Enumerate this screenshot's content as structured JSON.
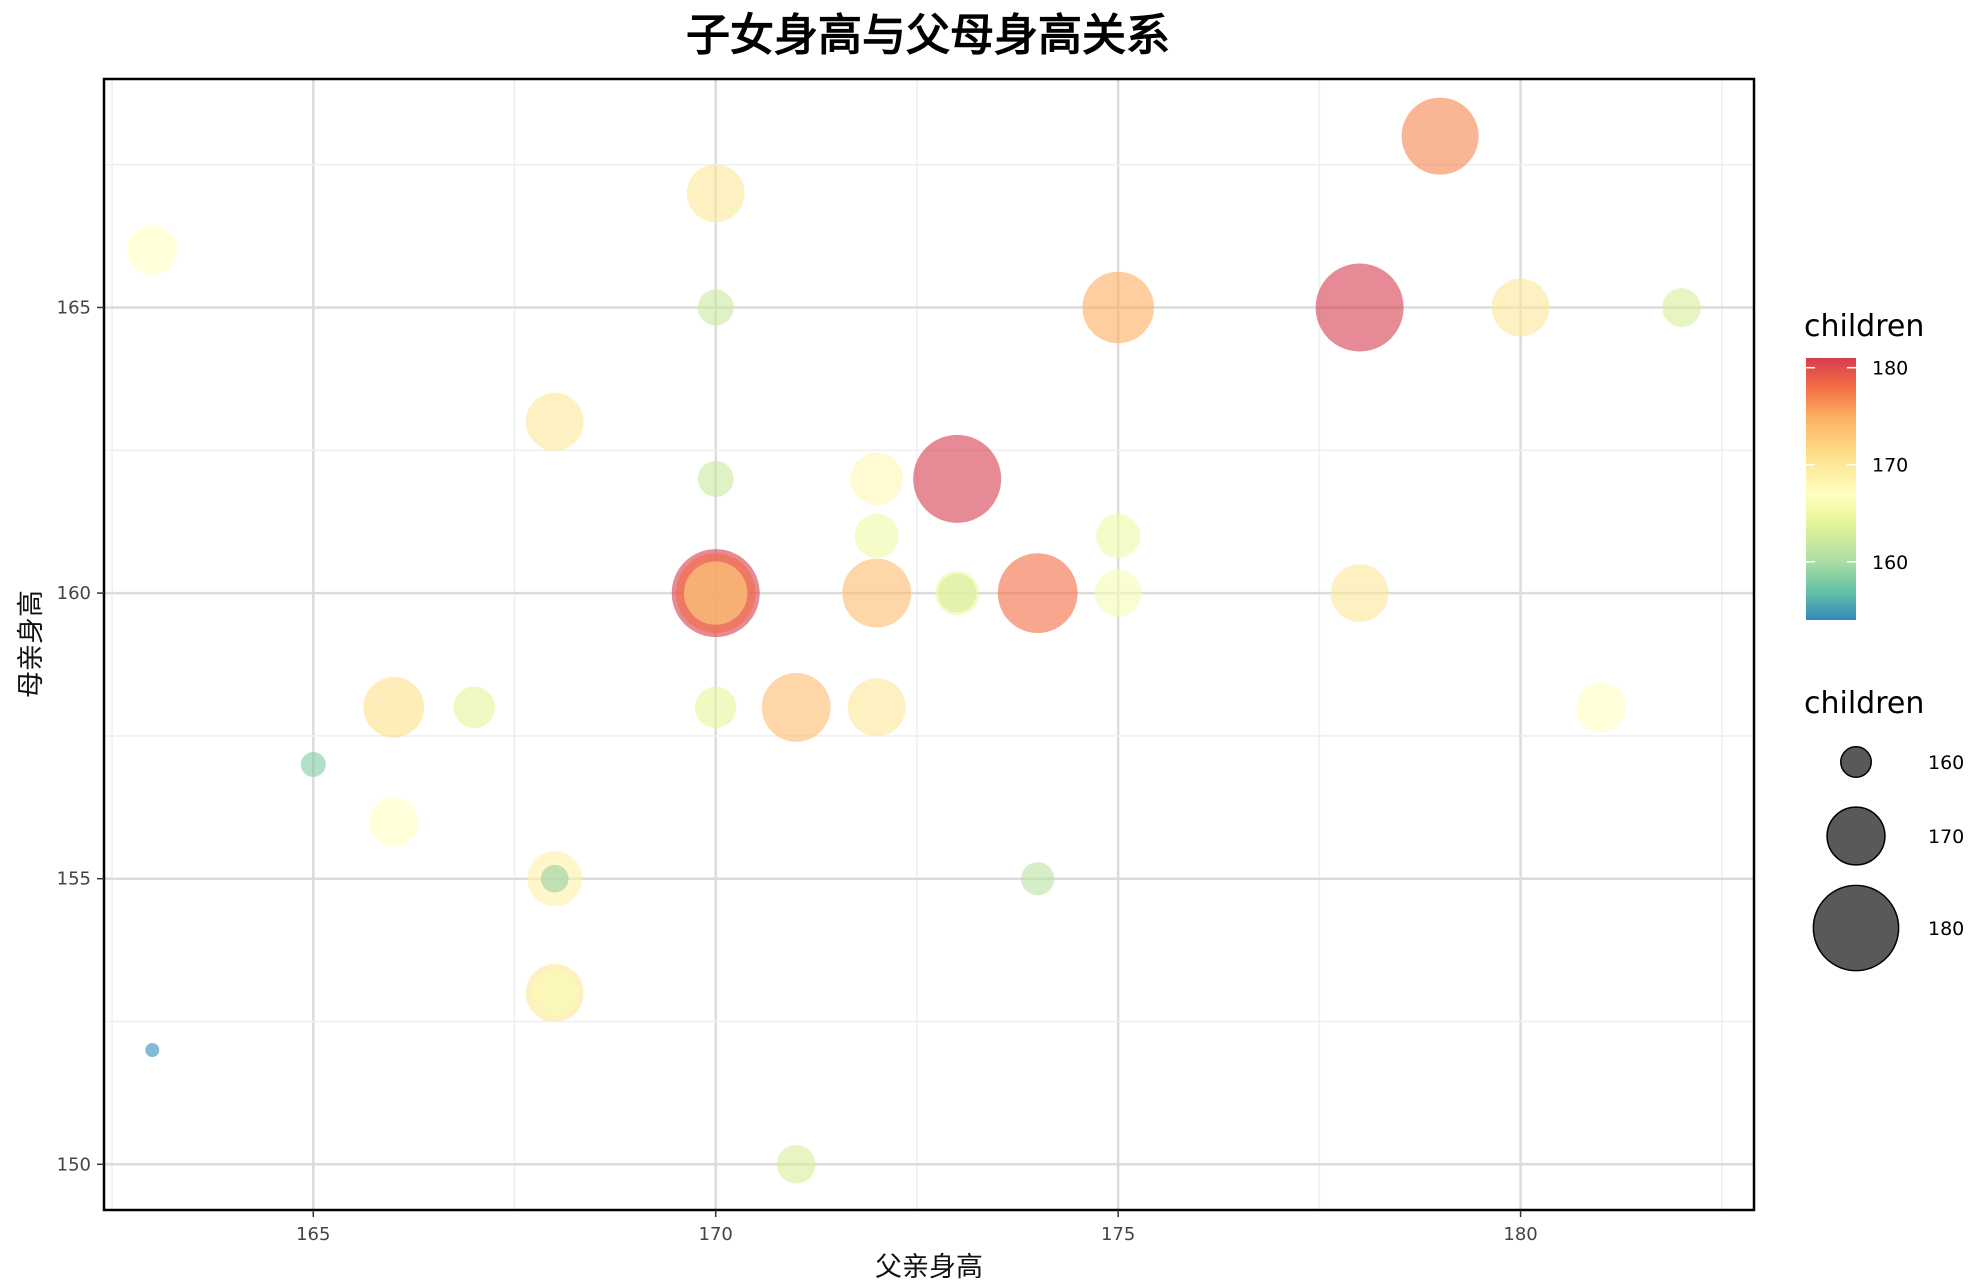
{
  "chart_data": {
    "type": "scatter",
    "title": "子女身高与父母身高关系",
    "xlabel": "父亲身高",
    "ylabel": "母亲身高",
    "xlim": [
      162.4,
      182.9
    ],
    "ylim": [
      149.2,
      169.0
    ],
    "x_ticks": [
      165,
      170,
      175,
      180
    ],
    "y_ticks": [
      150,
      155,
      160,
      165
    ],
    "grid": true,
    "point_opacity": 0.6,
    "color_scale": {
      "title": "children",
      "palette": "Spectral",
      "domain": [
        154,
        181
      ],
      "stops": [
        {
          "value": 154,
          "color": "#3288bd"
        },
        {
          "value": 157,
          "color": "#66c2a5"
        },
        {
          "value": 160,
          "color": "#abdda4"
        },
        {
          "value": 164,
          "color": "#e6f598"
        },
        {
          "value": 167,
          "color": "#ffffbf"
        },
        {
          "value": 171,
          "color": "#fee08b"
        },
        {
          "value": 175,
          "color": "#fdae61"
        },
        {
          "value": 178,
          "color": "#f46d43"
        },
        {
          "value": 181,
          "color": "#d53e4f"
        }
      ],
      "ticks": [
        160,
        170,
        180
      ],
      "tick_labels": [
        "160",
        "170",
        "180"
      ]
    },
    "size_scale": {
      "title": "children",
      "domain": [
        154,
        181
      ],
      "breaks": [
        160,
        170,
        180
      ],
      "break_labels": [
        "160",
        "170",
        "180"
      ],
      "legend_color": "#000000",
      "legend_opacity": 0.65
    },
    "legend_position": "right",
    "points": [
      {
        "father": 163,
        "mother": 166,
        "children": 167
      },
      {
        "father": 163,
        "mother": 152,
        "children": 154
      },
      {
        "father": 165,
        "mother": 157,
        "children": 158
      },
      {
        "father": 166,
        "mother": 158,
        "children": 171
      },
      {
        "father": 166,
        "mother": 156,
        "children": 167
      },
      {
        "father": 167,
        "mother": 158,
        "children": 164
      },
      {
        "father": 168,
        "mother": 163,
        "children": 170
      },
      {
        "father": 168,
        "mother": 155,
        "children": 169
      },
      {
        "father": 168,
        "mother": 155,
        "children": 159
      },
      {
        "father": 168,
        "mother": 153,
        "children": 170
      },
      {
        "father": 168,
        "mother": 153,
        "children": 166
      },
      {
        "father": 170,
        "mother": 167,
        "children": 170
      },
      {
        "father": 170,
        "mother": 165,
        "children": 162
      },
      {
        "father": 170,
        "mother": 162,
        "children": 162
      },
      {
        "father": 170,
        "mother": 160,
        "children": 181
      },
      {
        "father": 170,
        "mother": 160,
        "children": 178
      },
      {
        "father": 170,
        "mother": 160,
        "children": 172
      },
      {
        "father": 170,
        "mother": 158,
        "children": 164
      },
      {
        "father": 171,
        "mother": 158,
        "children": 174
      },
      {
        "father": 171,
        "mother": 150,
        "children": 163
      },
      {
        "father": 172,
        "mother": 162,
        "children": 168
      },
      {
        "father": 172,
        "mother": 161,
        "children": 165
      },
      {
        "father": 172,
        "mother": 160,
        "children": 174
      },
      {
        "father": 172,
        "mother": 158,
        "children": 170
      },
      {
        "father": 173,
        "mother": 162,
        "children": 181
      },
      {
        "father": 173,
        "mother": 160,
        "children": 165
      },
      {
        "father": 173,
        "mother": 160,
        "children": 163
      },
      {
        "father": 174,
        "mother": 160,
        "children": 178
      },
      {
        "father": 174,
        "mother": 155,
        "children": 161
      },
      {
        "father": 175,
        "mother": 165,
        "children": 175
      },
      {
        "father": 175,
        "mother": 161,
        "children": 165
      },
      {
        "father": 175,
        "mother": 160,
        "children": 166
      },
      {
        "father": 178,
        "mother": 165,
        "children": 181
      },
      {
        "father": 178,
        "mother": 160,
        "children": 170
      },
      {
        "father": 179,
        "mother": 168,
        "children": 177
      },
      {
        "father": 180,
        "mother": 165,
        "children": 170
      },
      {
        "father": 181,
        "mother": 158,
        "children": 167
      },
      {
        "father": 182,
        "mother": 165,
        "children": 163
      }
    ]
  }
}
